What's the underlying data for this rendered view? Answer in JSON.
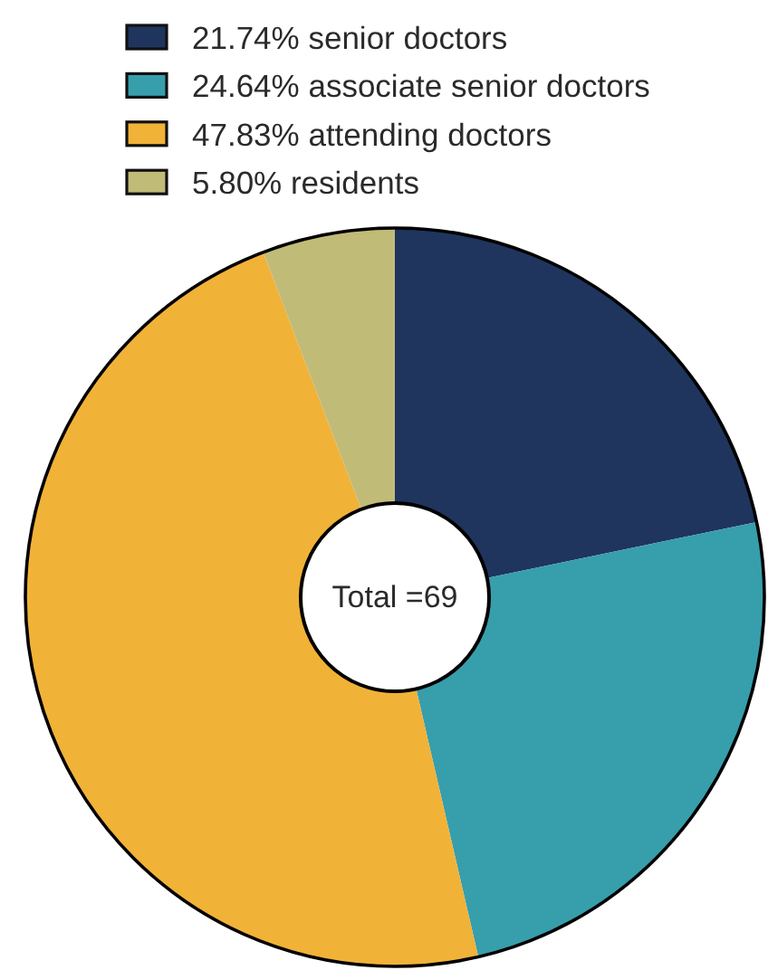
{
  "chart_data": {
    "type": "donut",
    "categories": [
      "21.74% senior doctors",
      "24.64% associate senior doctors",
      "47.83% attending doctors",
      "5.80% residents"
    ],
    "values": [
      21.74,
      24.64,
      47.83,
      5.8
    ],
    "colors": [
      "#1f355d",
      "#379eac",
      "#f1b238",
      "#c1bb78"
    ],
    "annotations": [
      "Total =69"
    ],
    "legend": "top"
  }
}
